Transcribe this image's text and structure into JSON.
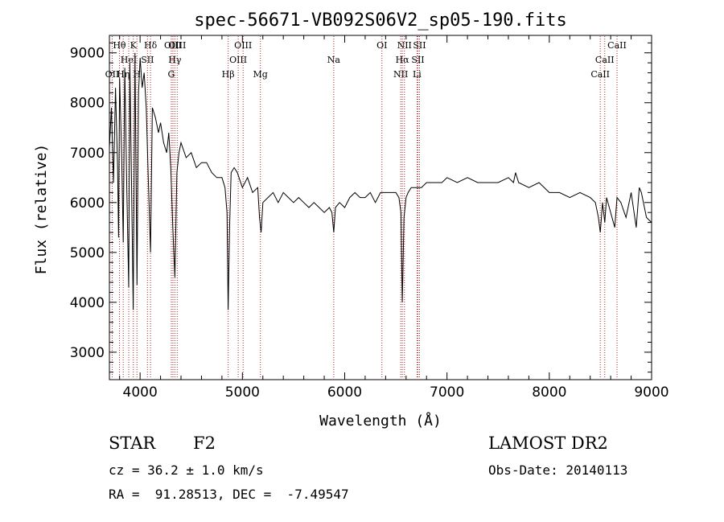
{
  "chart_data": {
    "type": "line",
    "title": "spec-56671-VB092S06V2_sp05-190.fits",
    "xlabel": "Wavelength (Å)",
    "ylabel": "Flux (relative)",
    "xlim": [
      3700,
      9000
    ],
    "ylim": [
      2450,
      9350
    ],
    "xticks": [
      4000,
      5000,
      6000,
      7000,
      8000,
      9000
    ],
    "yticks": [
      3000,
      4000,
      5000,
      6000,
      7000,
      8000,
      9000
    ],
    "grid": false,
    "spectrum": {
      "x": [
        3700,
        3720,
        3740,
        3760,
        3780,
        3790,
        3800,
        3820,
        3835,
        3850,
        3870,
        3889,
        3900,
        3920,
        3933,
        3950,
        3970,
        3985,
        4000,
        4020,
        4040,
        4060,
        4080,
        4102,
        4120,
        4150,
        4180,
        4200,
        4230,
        4260,
        4280,
        4300,
        4320,
        4340,
        4360,
        4380,
        4400,
        4450,
        4500,
        4550,
        4600,
        4650,
        4700,
        4750,
        4800,
        4830,
        4850,
        4861,
        4875,
        4890,
        4920,
        4950,
        5000,
        5050,
        5100,
        5150,
        5167,
        5183,
        5200,
        5250,
        5300,
        5350,
        5400,
        5450,
        5500,
        5550,
        5600,
        5650,
        5700,
        5750,
        5800,
        5850,
        5875,
        5893,
        5910,
        5950,
        6000,
        6050,
        6100,
        6150,
        6200,
        6250,
        6300,
        6350,
        6400,
        6450,
        6500,
        6530,
        6550,
        6563,
        6580,
        6600,
        6620,
        6650,
        6700,
        6750,
        6800,
        6850,
        6900,
        6950,
        7000,
        7100,
        7200,
        7300,
        7400,
        7500,
        7600,
        7650,
        7670,
        7700,
        7800,
        7900,
        8000,
        8100,
        8200,
        8300,
        8400,
        8450,
        8480,
        8498,
        8520,
        8542,
        8560,
        8600,
        8640,
        8662,
        8700,
        8750,
        8800,
        8850,
        8880,
        8900,
        8950,
        9000
      ],
      "y": [
        7100,
        7900,
        6400,
        8300,
        6700,
        5300,
        8500,
        6900,
        5200,
        8700,
        6300,
        4300,
        8800,
        5800,
        3850,
        9000,
        4350,
        8200,
        8900,
        8300,
        8600,
        7900,
        6500,
        5000,
        7900,
        7700,
        7400,
        7600,
        7200,
        7000,
        7400,
        6700,
        5500,
        4500,
        6600,
        7000,
        7200,
        6900,
        7000,
        6700,
        6800,
        6800,
        6600,
        6500,
        6500,
        6300,
        5800,
        3850,
        5500,
        6600,
        6700,
        6600,
        6300,
        6500,
        6200,
        6300,
        5700,
        5400,
        6000,
        6100,
        6200,
        6000,
        6200,
        6100,
        6000,
        6100,
        6000,
        5900,
        6000,
        5900,
        5800,
        5900,
        5800,
        5400,
        5900,
        6000,
        5900,
        6100,
        6200,
        6100,
        6100,
        6200,
        6000,
        6200,
        6200,
        6200,
        6200,
        6100,
        5800,
        4000,
        5700,
        6100,
        6200,
        6300,
        6300,
        6300,
        6400,
        6400,
        6400,
        6400,
        6500,
        6400,
        6500,
        6400,
        6400,
        6400,
        6500,
        6400,
        6600,
        6400,
        6300,
        6400,
        6200,
        6200,
        6100,
        6200,
        6100,
        6000,
        5700,
        5400,
        6000,
        5600,
        6100,
        5800,
        5500,
        6100,
        6000,
        5700,
        6200,
        5500,
        6300,
        6200,
        5700,
        5600
      ]
    },
    "lines": [
      {
        "label": "OII",
        "x": 3727,
        "row": 2
      },
      {
        "label": "Hθ",
        "x": 3798,
        "row": 0
      },
      {
        "label": "Hη",
        "x": 3835,
        "row": 2
      },
      {
        "label": "HeI",
        "x": 3889,
        "row": 1
      },
      {
        "label": "K",
        "x": 3934,
        "row": 0
      },
      {
        "label": "H",
        "x": 3969,
        "row": 2
      },
      {
        "label": "SII",
        "x": 4072,
        "row": 1
      },
      {
        "label": "Hδ",
        "x": 4102,
        "row": 0
      },
      {
        "label": "OIII",
        "x": 4321,
        "row": 0
      },
      {
        "label": "Hγ",
        "x": 4340,
        "row": 1
      },
      {
        "label": "G",
        "x": 4305,
        "row": 2
      },
      {
        "label": "OIII",
        "x": 4363,
        "row": -1
      },
      {
        "label": "Hβ",
        "x": 4861,
        "row": 2
      },
      {
        "label": "OIII",
        "x": 4959,
        "row": 1
      },
      {
        "label": "OIII",
        "x": 5007,
        "row": 0
      },
      {
        "label": "Mg",
        "x": 5176,
        "row": 2
      },
      {
        "label": "Na",
        "x": 5893,
        "row": 1
      },
      {
        "label": "OI",
        "x": 6364,
        "row": 0
      },
      {
        "label": "NII",
        "x": 6548,
        "row": 2
      },
      {
        "label": "NII",
        "x": 6584,
        "row": 0
      },
      {
        "label": "Hα",
        "x": 6563,
        "row": 1
      },
      {
        "label": "Li",
        "x": 6707,
        "row": 2
      },
      {
        "label": "SII",
        "x": 6716,
        "row": 1
      },
      {
        "label": "SII",
        "x": 6731,
        "row": 0
      },
      {
        "label": "CaII",
        "x": 8498,
        "row": 2
      },
      {
        "label": "CaII",
        "x": 8542,
        "row": 1
      },
      {
        "label": "CaII",
        "x": 8662,
        "row": 0
      }
    ]
  },
  "info": {
    "class_label": "STAR",
    "subclass": "F2",
    "survey": "LAMOST DR2",
    "redshift": "cz = 36.2 ± 1.0 km/s",
    "obs_date": "Obs-Date: 20140113",
    "coords": "RA =  91.28513, DEC =  -7.49547"
  },
  "colors": {
    "spectrum": "#000000",
    "line_markers": "#b22222"
  }
}
